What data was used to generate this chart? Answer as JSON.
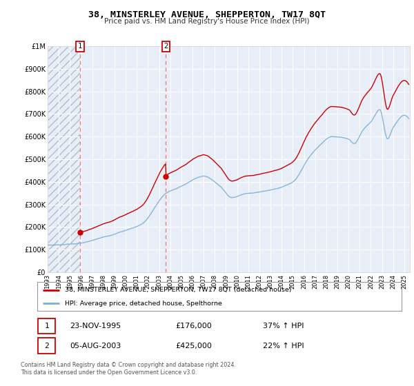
{
  "title": "38, MINSTERLEY AVENUE, SHEPPERTON, TW17 8QT",
  "subtitle": "Price paid vs. HM Land Registry's House Price Index (HPI)",
  "ylim": [
    0,
    1000000
  ],
  "xlim_start": 1993.0,
  "xlim_end": 2025.5,
  "background_color": "#ffffff",
  "plot_bg_color": "#e8eef8",
  "grid_color": "#ffffff",
  "hpi_color": "#7ab0d4",
  "price_color": "#cc0000",
  "legend_label_price": "38, MINSTERLEY AVENUE, SHEPPERTON, TW17 8QT (detached house)",
  "legend_label_hpi": "HPI: Average price, detached house, Spelthorne",
  "sale1_date": 1995.9,
  "sale1_price": 176000,
  "sale2_date": 2003.6,
  "sale2_price": 425000,
  "annotation1_date": "23-NOV-1995",
  "annotation1_price": "£176,000",
  "annotation1_hpi": "37% ↑ HPI",
  "annotation2_date": "05-AUG-2003",
  "annotation2_price": "£425,000",
  "annotation2_hpi": "22% ↑ HPI",
  "footnote": "Contains HM Land Registry data © Crown copyright and database right 2024.\nThis data is licensed under the Open Government Licence v3.0.",
  "yticks": [
    0,
    100000,
    200000,
    300000,
    400000,
    500000,
    600000,
    700000,
    800000,
    900000,
    1000000
  ],
  "ytick_labels": [
    "£0",
    "£100K",
    "£200K",
    "£300K",
    "£400K",
    "£500K",
    "£600K",
    "£700K",
    "£800K",
    "£900K",
    "£1M"
  ],
  "xticks": [
    1993,
    1994,
    1995,
    1996,
    1997,
    1998,
    1999,
    2000,
    2001,
    2002,
    2003,
    2004,
    2005,
    2006,
    2007,
    2008,
    2009,
    2010,
    2011,
    2012,
    2013,
    2014,
    2015,
    2016,
    2017,
    2018,
    2019,
    2020,
    2021,
    2022,
    2023,
    2024,
    2025
  ],
  "hatch_color": "#b0bcd0",
  "sale1_hpi_ratio": 1.37,
  "sale2_hpi_ratio": 1.22
}
